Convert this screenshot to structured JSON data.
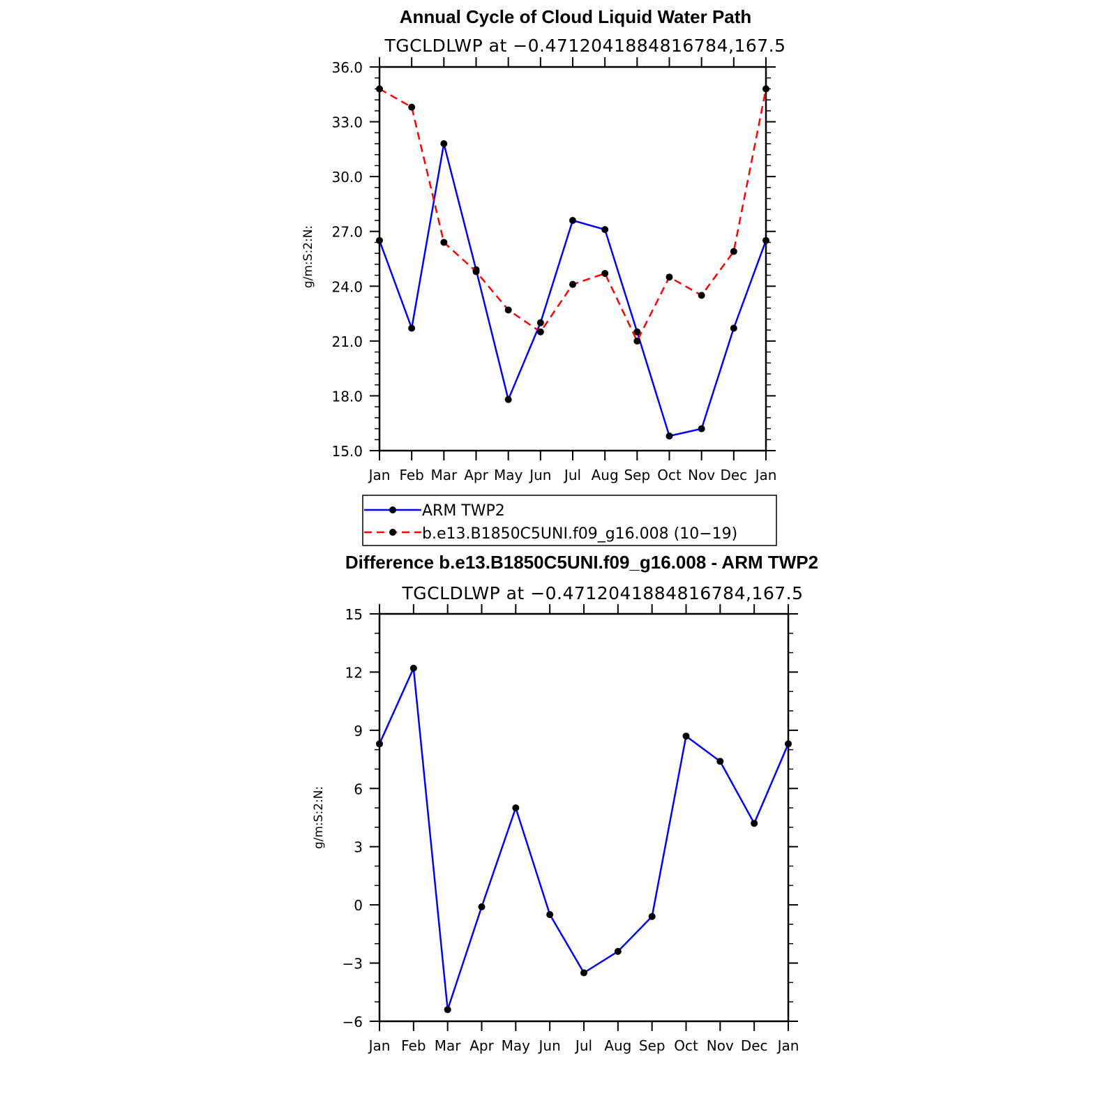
{
  "chart_data": [
    {
      "type": "line",
      "title": "Annual Cycle of Cloud Liquid Water Path",
      "subtitle": "TGCLDLWP at −0.4712041884816784,167.5",
      "ylabel": "g/m:S:2:N:",
      "categories": [
        "Jan",
        "Feb",
        "Mar",
        "Apr",
        "May",
        "Jun",
        "Jul",
        "Aug",
        "Sep",
        "Oct",
        "Nov",
        "Dec",
        "Jan"
      ],
      "ylim": [
        15.0,
        36.0
      ],
      "yticks": [
        "15.0",
        "18.0",
        "21.0",
        "24.0",
        "27.0",
        "30.0",
        "33.0",
        "36.0"
      ],
      "series": [
        {
          "name": "ARM TWP2",
          "color": "#0000ff",
          "dash": "solid",
          "values": [
            26.5,
            21.7,
            31.8,
            24.9,
            17.8,
            22.0,
            27.6,
            27.1,
            21.5,
            15.8,
            16.2,
            21.7,
            26.5
          ]
        },
        {
          "name": "b.e13.B1850C5UNI.f09_g16.008 (10−19)",
          "color": "#ff0000",
          "dash": "dashed",
          "values": [
            34.8,
            33.8,
            26.4,
            24.8,
            22.7,
            21.5,
            24.1,
            24.7,
            21.0,
            24.5,
            23.5,
            25.9,
            34.8
          ]
        }
      ],
      "legend": "bottom"
    },
    {
      "type": "line",
      "title": "Difference b.e13.B1850C5UNI.f09_g16.008 - ARM TWP2",
      "subtitle": "TGCLDLWP at −0.4712041884816784,167.5",
      "ylabel": "g/m:S:2:N:",
      "categories": [
        "Jan",
        "Feb",
        "Mar",
        "Apr",
        "May",
        "Jun",
        "Jul",
        "Aug",
        "Sep",
        "Oct",
        "Nov",
        "Dec",
        "Jan"
      ],
      "ylim": [
        -6,
        15
      ],
      "yticks": [
        "−6",
        "−3",
        "0",
        "3",
        "6",
        "9",
        "12",
        "15"
      ],
      "series": [
        {
          "color": "#0000ff",
          "dash": "solid",
          "values": [
            8.3,
            12.2,
            -5.4,
            -0.1,
            5.0,
            -0.5,
            -3.5,
            -2.4,
            -0.6,
            8.7,
            7.4,
            4.2,
            8.3
          ]
        }
      ]
    }
  ]
}
